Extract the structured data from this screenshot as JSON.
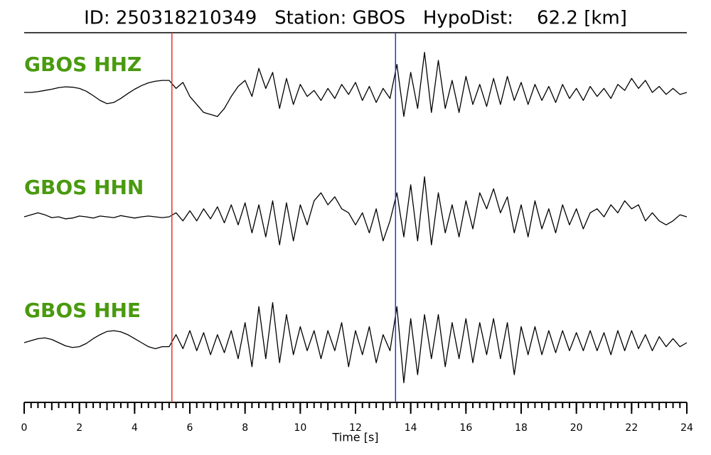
{
  "chart_data": {
    "type": "seismogram",
    "title": "ID: 250318210349   Station: GBOS   HypoDist:    62.2 [km]",
    "xlabel": "Time [s]",
    "xlim": [
      0,
      24
    ],
    "ylim": [
      -1.1,
      1.1
    ],
    "xticks": [
      0,
      2,
      4,
      6,
      8,
      10,
      12,
      14,
      16,
      18,
      20,
      22,
      24
    ],
    "xminorticks": [
      0,
      0.25,
      0.5,
      0.75,
      1,
      1.25,
      1.5,
      1.75,
      2,
      2.25,
      2.5,
      2.75,
      3,
      3.25,
      3.5,
      3.75,
      4,
      4.25,
      4.5,
      4.75,
      5,
      5.25,
      5.5,
      5.75,
      6,
      6.25,
      6.5,
      6.75,
      7,
      7.25,
      7.5,
      7.75,
      8,
      8.25,
      8.5,
      8.75,
      9,
      9.25,
      9.5,
      9.75,
      10,
      10.25,
      10.5,
      10.75,
      11,
      11.25,
      11.5,
      11.75,
      12,
      12.25,
      12.5,
      12.75,
      13,
      13.25,
      13.5,
      13.75,
      14,
      14.25,
      14.5,
      14.75,
      15,
      15.25,
      15.5,
      15.75,
      16,
      16.25,
      16.5,
      16.75,
      17,
      17.25,
      17.5,
      17.75,
      18,
      18.25,
      18.5,
      18.75,
      19,
      19.25,
      19.5,
      19.75,
      20,
      20.25,
      20.5,
      20.75,
      21,
      21.25,
      21.5,
      21.75,
      22,
      22.25,
      22.5,
      22.75,
      23,
      23.25,
      23.5,
      23.75,
      24
    ],
    "x": [
      0,
      0.25,
      0.5,
      0.75,
      1,
      1.25,
      1.5,
      1.75,
      2,
      2.25,
      2.5,
      2.75,
      3,
      3.25,
      3.5,
      3.75,
      4,
      4.25,
      4.5,
      4.75,
      5,
      5.25,
      5.5,
      5.75,
      6,
      6.25,
      6.5,
      6.75,
      7,
      7.25,
      7.5,
      7.75,
      8,
      8.25,
      8.5,
      8.75,
      9,
      9.25,
      9.5,
      9.75,
      10,
      10.25,
      10.5,
      10.75,
      11,
      11.25,
      11.5,
      11.75,
      12,
      12.25,
      12.5,
      12.75,
      13,
      13.25,
      13.5,
      13.75,
      14,
      14.25,
      14.5,
      14.75,
      15,
      15.25,
      15.5,
      15.75,
      16,
      16.25,
      16.5,
      16.75,
      17,
      17.25,
      17.5,
      17.75,
      18,
      18.25,
      18.5,
      18.75,
      19,
      19.25,
      19.5,
      19.75,
      20,
      20.25,
      20.5,
      20.75,
      21,
      21.25,
      21.5,
      21.75,
      22,
      22.25,
      22.5,
      22.75,
      23,
      23.25,
      23.5,
      23.75,
      24
    ],
    "series": [
      {
        "name": "GBOS HHZ",
        "color": "#000000",
        "values": [
          0.0,
          0.0,
          0.02,
          0.05,
          0.08,
          0.12,
          0.14,
          0.13,
          0.1,
          0.03,
          -0.08,
          -0.2,
          -0.28,
          -0.25,
          -0.15,
          -0.03,
          0.08,
          0.17,
          0.24,
          0.28,
          0.3,
          0.3,
          0.1,
          0.25,
          -0.1,
          -0.3,
          -0.5,
          -0.55,
          -0.6,
          -0.4,
          -0.1,
          0.15,
          0.3,
          -0.1,
          0.6,
          0.1,
          0.5,
          -0.4,
          0.35,
          -0.3,
          0.2,
          -0.1,
          0.05,
          -0.2,
          0.1,
          -0.15,
          0.2,
          -0.05,
          0.25,
          -0.2,
          0.15,
          -0.25,
          0.1,
          -0.15,
          0.7,
          -0.6,
          0.5,
          -0.4,
          1.0,
          -0.5,
          0.8,
          -0.4,
          0.3,
          -0.5,
          0.4,
          -0.3,
          0.2,
          -0.35,
          0.35,
          -0.3,
          0.4,
          -0.2,
          0.25,
          -0.3,
          0.2,
          -0.2,
          0.15,
          -0.25,
          0.2,
          -0.15,
          0.1,
          -0.2,
          0.15,
          -0.1,
          0.1,
          -0.15,
          0.2,
          0.05,
          0.35,
          0.1,
          0.3,
          0.0,
          0.15,
          -0.05,
          0.1,
          -0.05,
          0.0
        ]
      },
      {
        "name": "GBOS HHN",
        "color": "#000000",
        "values": [
          0,
          0.05,
          0.1,
          0.05,
          -0.02,
          0.0,
          -0.05,
          -0.03,
          0.02,
          0.0,
          -0.03,
          0.02,
          0.0,
          -0.02,
          0.03,
          0.0,
          -0.03,
          0.0,
          0.02,
          0.0,
          -0.02,
          0.0,
          0.1,
          -0.1,
          0.15,
          -0.1,
          0.2,
          -0.05,
          0.25,
          -0.15,
          0.3,
          -0.2,
          0.35,
          -0.4,
          0.3,
          -0.5,
          0.4,
          -0.7,
          0.35,
          -0.6,
          0.3,
          -0.2,
          0.4,
          0.6,
          0.3,
          0.5,
          0.2,
          0.1,
          -0.2,
          0.1,
          -0.4,
          0.2,
          -0.6,
          -0.1,
          0.6,
          -0.5,
          0.8,
          -0.6,
          1.0,
          -0.7,
          0.6,
          -0.4,
          0.3,
          -0.5,
          0.4,
          -0.3,
          0.6,
          0.2,
          0.7,
          0.1,
          0.5,
          -0.4,
          0.3,
          -0.5,
          0.4,
          -0.3,
          0.2,
          -0.4,
          0.3,
          -0.2,
          0.2,
          -0.3,
          0.1,
          0.2,
          0.0,
          0.3,
          0.1,
          0.4,
          0.2,
          0.3,
          -0.1,
          0.1,
          -0.1,
          -0.2,
          -0.1,
          0.05,
          0.0
        ]
      },
      {
        "name": "GBOS HHE",
        "color": "#000000",
        "values": [
          0.0,
          0.05,
          0.1,
          0.12,
          0.08,
          0.0,
          -0.08,
          -0.12,
          -0.1,
          -0.02,
          0.1,
          0.2,
          0.28,
          0.3,
          0.27,
          0.2,
          0.1,
          0.0,
          -0.1,
          -0.15,
          -0.1,
          -0.1,
          0.2,
          -0.15,
          0.3,
          -0.2,
          0.25,
          -0.3,
          0.2,
          -0.25,
          0.3,
          -0.4,
          0.5,
          -0.6,
          0.9,
          -0.4,
          1.0,
          -0.5,
          0.7,
          -0.3,
          0.4,
          -0.2,
          0.3,
          -0.4,
          0.3,
          -0.2,
          0.5,
          -0.6,
          0.3,
          -0.3,
          0.4,
          -0.5,
          0.2,
          -0.2,
          0.9,
          -1.0,
          0.6,
          -0.8,
          0.7,
          -0.4,
          0.7,
          -0.6,
          0.5,
          -0.4,
          0.6,
          -0.5,
          0.5,
          -0.3,
          0.6,
          -0.4,
          0.5,
          -0.8,
          0.4,
          -0.3,
          0.4,
          -0.3,
          0.3,
          -0.25,
          0.3,
          -0.2,
          0.25,
          -0.2,
          0.3,
          -0.2,
          0.25,
          -0.3,
          0.3,
          -0.2,
          0.3,
          -0.15,
          0.2,
          -0.2,
          0.15,
          -0.1,
          0.1,
          -0.1,
          0.0
        ]
      }
    ],
    "markers": [
      {
        "x": 5.35,
        "color": "#e8302a"
      },
      {
        "x": 13.45,
        "color": "#2a35c8"
      }
    ],
    "label_color": "#4a9a10"
  }
}
